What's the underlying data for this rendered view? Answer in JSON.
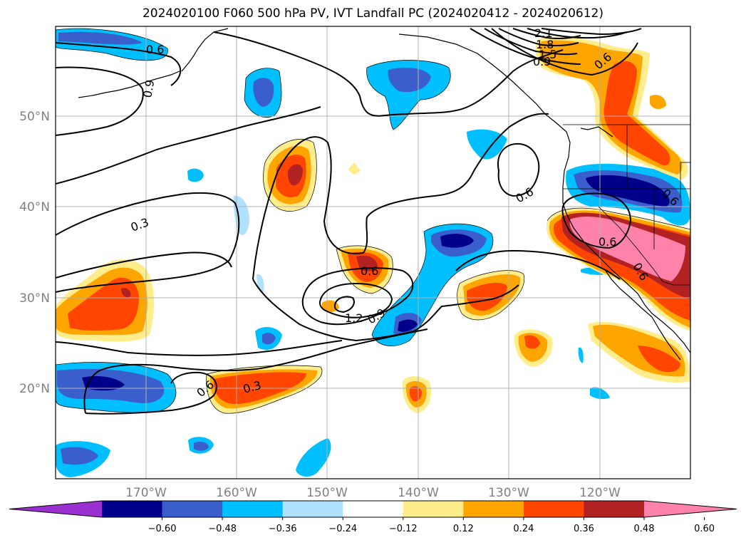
{
  "title": "2024020100 F060 500 hPa PV, IVT Landfall PC (2024020412 - 2024020612)",
  "lat_labels": [
    "50°N",
    "40°N",
    "30°N",
    "20°N"
  ],
  "lon_labels": [
    "170°W",
    "160°W",
    "150°W",
    "140°W",
    "130°W",
    "120°W"
  ],
  "colorbar": {
    "ticks": [
      "−0.60",
      "−0.48",
      "−0.36",
      "−0.24",
      "−0.12",
      "0.12",
      "0.24",
      "0.36",
      "0.48",
      "0.60"
    ],
    "colors": [
      "#9b30d0",
      "#00008b",
      "#3a5fcd",
      "#00bfff",
      "#b0e2ff",
      "#ffffff",
      "#ffec8b",
      "#ffa500",
      "#ff4500",
      "#b22222",
      "#ff82ab"
    ]
  },
  "contour_labels": [
    "0.6",
    "0.9",
    "0.3",
    "0.6",
    "0.6",
    "1.2",
    "0.9",
    "0.6",
    "0.3",
    "0.6",
    "0.6",
    "2.1",
    "1.8",
    "1.5",
    "0.9",
    "0.6",
    "0.6"
  ],
  "colors": {
    "neg_light": "#b0e2ff",
    "neg_mid": "#00bfff",
    "neg_strong": "#3a5fcd",
    "neg_max": "#00008b",
    "pos_light": "#ffec8b",
    "pos_mid": "#ffa500",
    "pos_strong": "#ff4500",
    "pos_max": "#b22222",
    "pos_extreme": "#ff82ab"
  }
}
